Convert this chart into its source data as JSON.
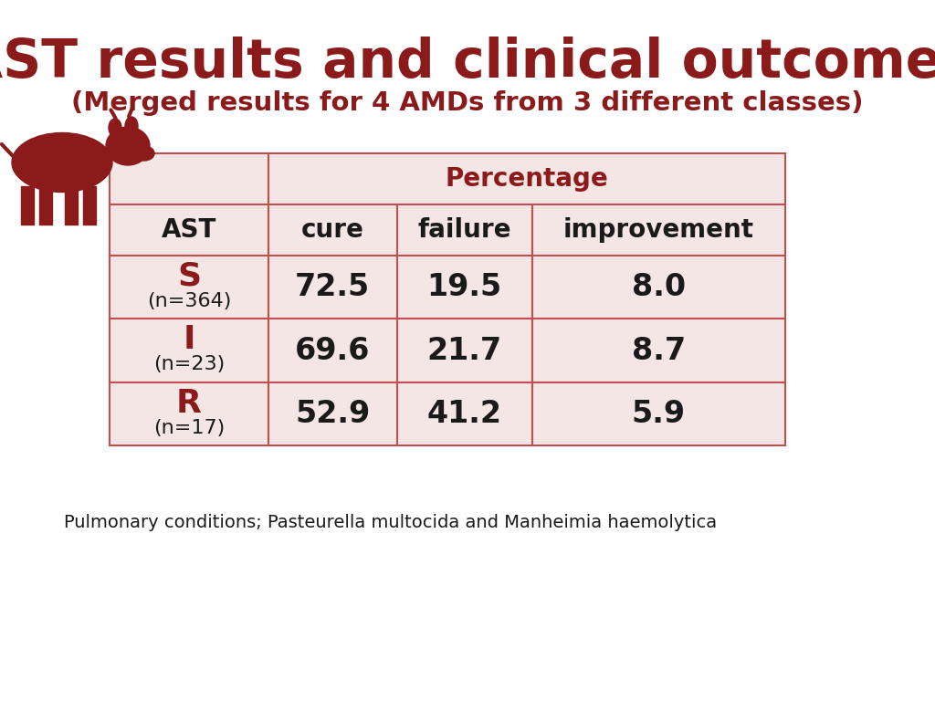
{
  "title": "AST results and clinical outcomes",
  "subtitle": "(Merged results for 4 AMDs from 3 different classes)",
  "title_color": "#8B1A1A",
  "subtitle_color": "#8B1A1A",
  "footer": "Pulmonary conditions; Pasteurella multocida and Manheimia haemolytica",
  "table_bg": "#F5E6E6",
  "border_color": "#C0504D",
  "header_label": "Percentage",
  "col_headers": [
    "AST",
    "cure",
    "failure",
    "improvement"
  ],
  "rows": [
    {
      "label": "S",
      "sublabel": "(n=364)",
      "values": [
        "72.5",
        "19.5",
        "8.0"
      ]
    },
    {
      "label": "I",
      "sublabel": "(n=23)",
      "values": [
        "69.6",
        "21.7",
        "8.7"
      ]
    },
    {
      "label": "R",
      "sublabel": "(n=17)",
      "values": [
        "52.9",
        "41.2",
        "5.9"
      ]
    }
  ],
  "red_color": "#8B1A1A",
  "black_color": "#1a1a1a",
  "white_bg": "#FFFFFF",
  "title_fontsize": 42,
  "subtitle_fontsize": 21,
  "header_fontsize": 20,
  "col_header_fontsize": 20,
  "data_fontsize": 24,
  "label_fontsize": 26,
  "sublabel_fontsize": 16,
  "footer_fontsize": 14
}
